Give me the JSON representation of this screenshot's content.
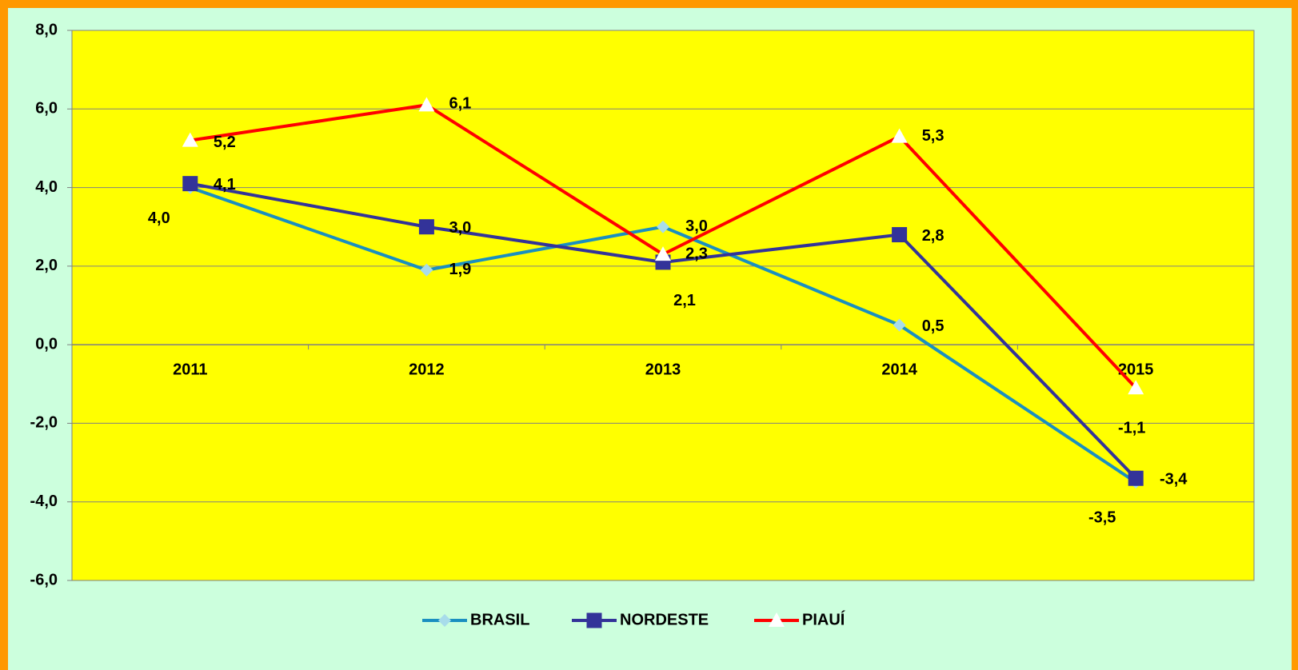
{
  "chart_data": {
    "type": "line",
    "categories": [
      "2011",
      "2012",
      "2013",
      "2014",
      "2015"
    ],
    "series": [
      {
        "name": "BRASIL",
        "color": "#1a8fc0",
        "marker": "diamond",
        "marker_color": "#a8dcea",
        "values": [
          4.0,
          1.9,
          3.0,
          0.5,
          -3.5
        ],
        "value_labels": [
          "4,0",
          "1,9",
          "3,0",
          "0,5",
          "-3,5"
        ]
      },
      {
        "name": "NORDESTE",
        "color": "#333399",
        "marker": "square",
        "marker_color": "#333399",
        "values": [
          4.1,
          3.0,
          2.1,
          2.8,
          -3.4
        ],
        "value_labels": [
          "4,1",
          "3,0",
          "2,1",
          "2,8",
          "-3,4"
        ]
      },
      {
        "name": "PIAUÍ",
        "color": "#ff0000",
        "marker": "triangle",
        "marker_color": "#ffffff",
        "values": [
          5.2,
          6.1,
          2.3,
          5.3,
          -1.1
        ],
        "value_labels": [
          "5,2",
          "6,1",
          "2,3",
          "5,3",
          "-1,1"
        ]
      }
    ],
    "ylim": [
      -6,
      8
    ],
    "yticks": [
      {
        "value": -6,
        "label": "-6,0"
      },
      {
        "value": -4,
        "label": "-4,0"
      },
      {
        "value": -2,
        "label": "-2,0"
      },
      {
        "value": 0,
        "label": "0,0"
      },
      {
        "value": 2,
        "label": "2,0"
      },
      {
        "value": 4,
        "label": "4,0"
      },
      {
        "value": 6,
        "label": "6,0"
      },
      {
        "value": 8,
        "label": "8,0"
      }
    ],
    "grid": true,
    "legend": "bottom"
  }
}
